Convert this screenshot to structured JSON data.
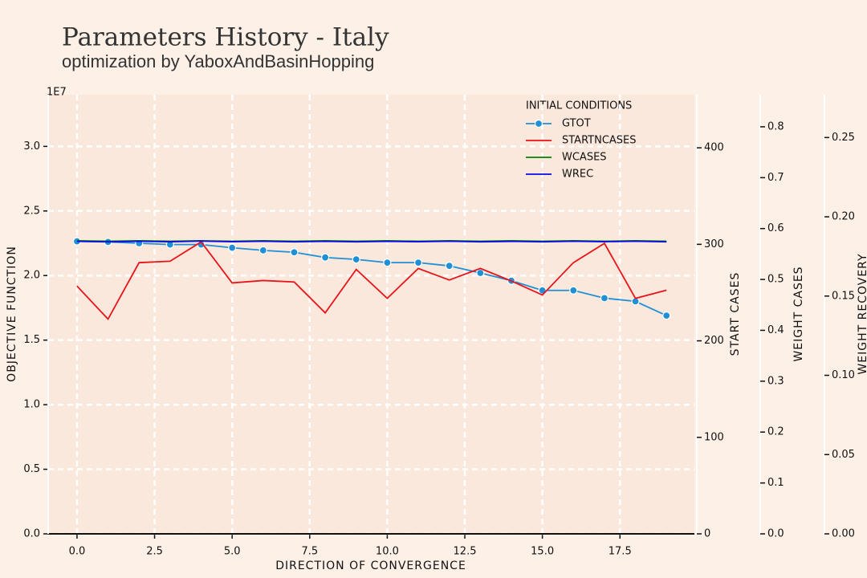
{
  "chart_data": {
    "type": "line",
    "title": "Parameters History - Italy",
    "subtitle": "optimization by YaboxAndBasinHopping",
    "xlabel": "DIRECTION OF CONVERGENCE",
    "ylabel": "OBJECTIVE FUNCTION",
    "y2label": "START CASES",
    "y3label": "WEIGHT CASES",
    "y4label": "WEIGHT RECOVERY",
    "yoffset_label": "1E7",
    "legend_title": "INITIAL CONDITIONS",
    "legend": "upper right",
    "grid": true,
    "x": [
      0,
      1,
      2,
      3,
      4,
      5,
      6,
      7,
      8,
      9,
      10,
      11,
      12,
      13,
      14,
      15,
      16,
      17,
      18,
      19
    ],
    "xlim": [
      -0.93,
      19.9
    ],
    "xticks": [
      {
        "value": 0,
        "label": "0.0"
      },
      2.5,
      {
        "value": 5,
        "label": "5.0"
      },
      7.5,
      {
        "value": 10,
        "label": "10.0"
      },
      12.5,
      {
        "value": 15,
        "label": "15.0"
      },
      17.5
    ],
    "ylim": [
      0,
      3.4
    ],
    "yticks": [
      {
        "value": 0,
        "label": "0.0"
      },
      0.5,
      {
        "value": 1,
        "label": "1.0"
      },
      1.5,
      {
        "value": 2,
        "label": "2.0"
      },
      2.5,
      {
        "value": 3,
        "label": "3.0"
      }
    ],
    "y2lim": [
      0,
      455
    ],
    "y2ticks": [
      0,
      100,
      200,
      300,
      400
    ],
    "y3lim": [
      0,
      0.863
    ],
    "y3ticks": [
      {
        "value": 0,
        "label": "0.0"
      },
      0.1,
      0.2,
      0.3,
      0.4,
      0.5,
      0.6,
      0.7,
      0.8
    ],
    "y4lim": [
      0,
      0.277
    ],
    "y4ticks": [
      {
        "value": 0,
        "label": "0.00"
      },
      0.05,
      {
        "value": 0.1,
        "label": "0.10"
      },
      0.15,
      {
        "value": 0.2,
        "label": "0.20"
      },
      0.25
    ],
    "series": [
      {
        "name": "GTOT",
        "color": "#1f8fd6",
        "axis": "y",
        "marker": true,
        "values": [
          2.265,
          2.26,
          2.25,
          2.24,
          2.24,
          2.215,
          2.195,
          2.18,
          2.14,
          2.125,
          2.1,
          2.1,
          2.075,
          2.02,
          1.96,
          1.885,
          1.885,
          1.825,
          1.8,
          1.69
        ]
      },
      {
        "name": "STARTNCASES",
        "color": "#e8141a",
        "axis": "y2",
        "marker": false,
        "values": [
          256.7,
          222.5,
          281,
          282.5,
          302.5,
          260,
          262.5,
          261,
          229,
          274,
          244,
          275,
          263,
          275,
          262,
          247.5,
          281,
          301,
          244,
          252.5
        ]
      },
      {
        "name": "WCASES",
        "color": "#008000",
        "axis": "y3",
        "marker": false,
        "values": [
          0.576,
          0.575,
          0.576,
          0.575,
          0.576,
          0.575,
          0.576,
          0.575,
          0.576,
          0.575,
          0.576,
          0.575,
          0.576,
          0.575,
          0.576,
          0.575,
          0.576,
          0.575,
          0.576,
          0.575
        ]
      },
      {
        "name": "WREC",
        "color": "#0a0ae8",
        "axis": "y4",
        "marker": false,
        "values": [
          0.1845,
          0.1842,
          0.1846,
          0.1842,
          0.1847,
          0.1843,
          0.1846,
          0.1842,
          0.1845,
          0.1842,
          0.1845,
          0.1843,
          0.1846,
          0.1842,
          0.1845,
          0.1842,
          0.1846,
          0.1843,
          0.1846,
          0.1842
        ]
      }
    ]
  }
}
